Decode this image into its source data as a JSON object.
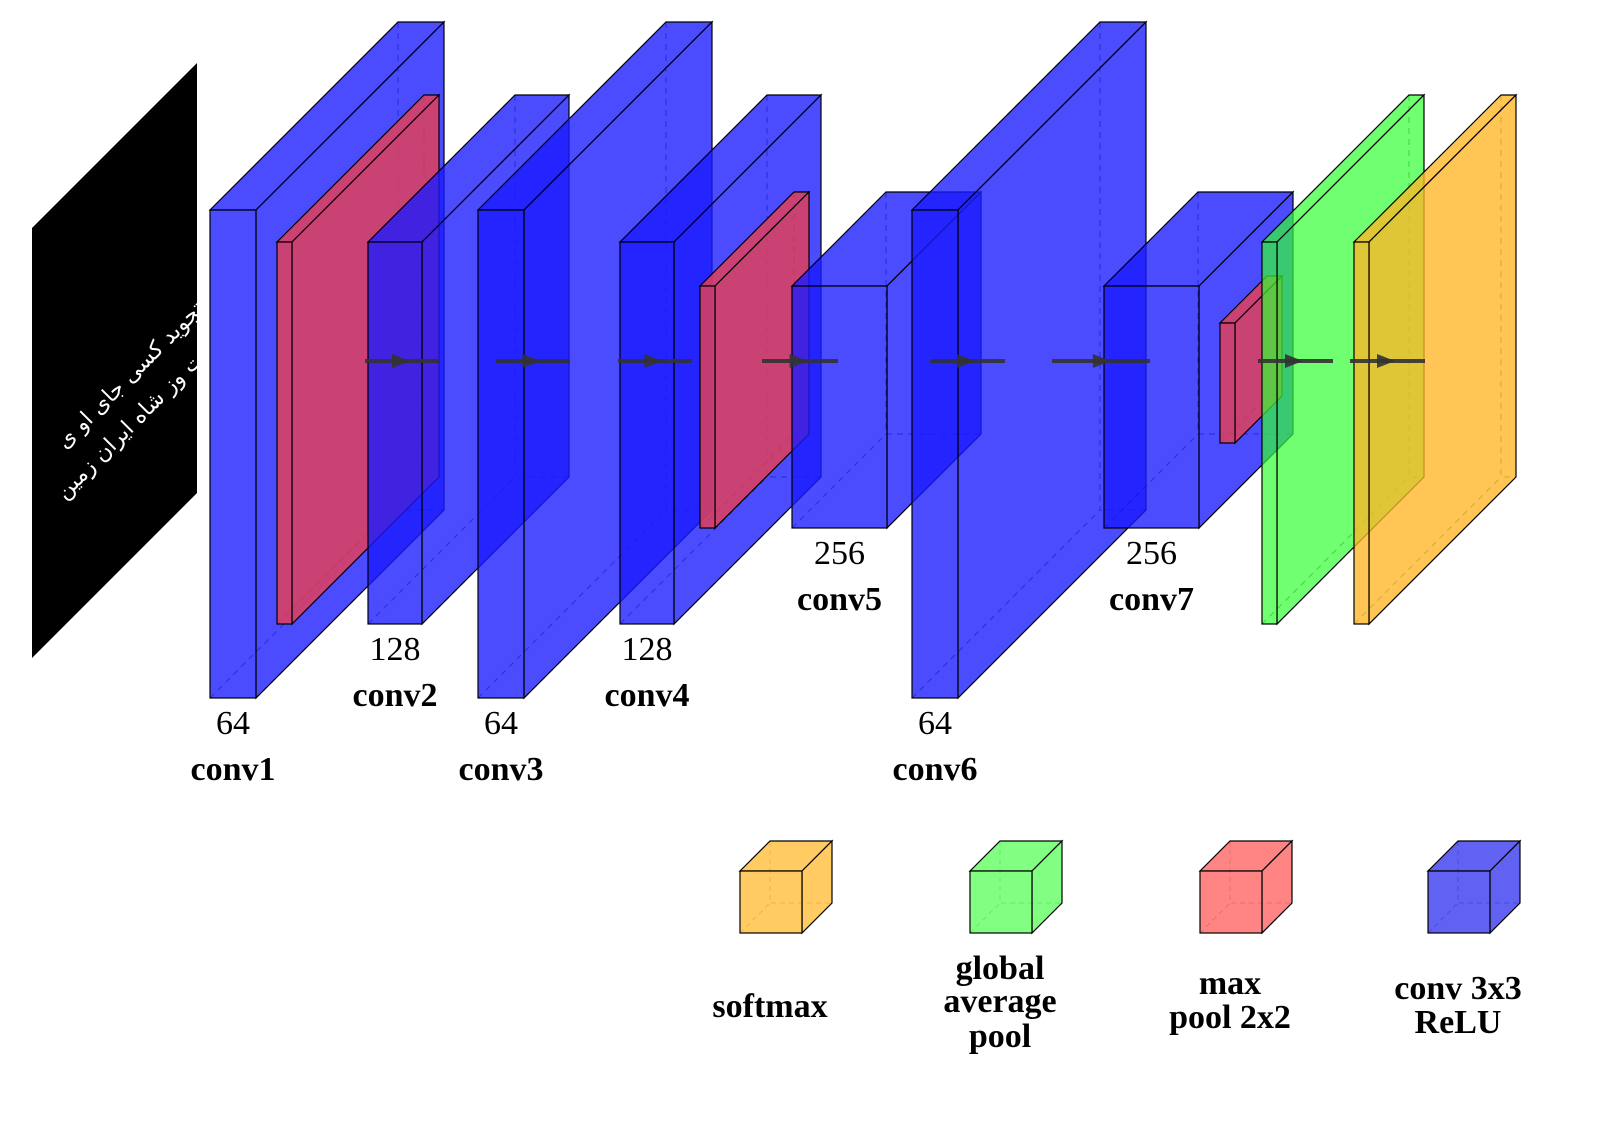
{
  "input_image": {
    "lines": [
      "تجوید کسی جای او ی",
      "ت وز شاه ایران زمین"
    ]
  },
  "layers": [
    {
      "id": "conv1",
      "type": "conv",
      "channels": "64",
      "label": "conv1"
    },
    {
      "id": "pool1",
      "type": "pool"
    },
    {
      "id": "conv2",
      "type": "conv",
      "channels": "128",
      "label": "conv2"
    },
    {
      "id": "conv3",
      "type": "conv",
      "channels": "64",
      "label": "conv3"
    },
    {
      "id": "conv4",
      "type": "conv",
      "channels": "128",
      "label": "conv4"
    },
    {
      "id": "pool2",
      "type": "pool"
    },
    {
      "id": "conv5",
      "type": "conv",
      "channels": "256",
      "label": "conv5"
    },
    {
      "id": "conv6",
      "type": "conv",
      "channels": "64",
      "label": "conv6"
    },
    {
      "id": "conv7",
      "type": "conv",
      "channels": "256",
      "label": "conv7"
    },
    {
      "id": "pool3",
      "type": "pool"
    },
    {
      "id": "gap",
      "type": "gap"
    },
    {
      "id": "softmax",
      "type": "softmax"
    }
  ],
  "legend": [
    {
      "type": "softmax",
      "lines": [
        "softmax"
      ]
    },
    {
      "type": "gap",
      "lines": [
        "global",
        "average",
        "pool"
      ]
    },
    {
      "type": "pool",
      "lines": [
        "max",
        "pool 2x2"
      ]
    },
    {
      "type": "conv",
      "lines": [
        "conv 3x3",
        "ReLU"
      ]
    }
  ],
  "colors": {
    "conv": "#1a1aff",
    "pool": "#e0405a",
    "gap": "#33ff33",
    "softmax": "#ffb627",
    "legend_conv": "#4646f0",
    "legend_pool": "#ff7070",
    "legend_gap": "#6cff6c",
    "legend_softmax": "#ffc247",
    "arrow": "#333333",
    "input": "#000000"
  }
}
